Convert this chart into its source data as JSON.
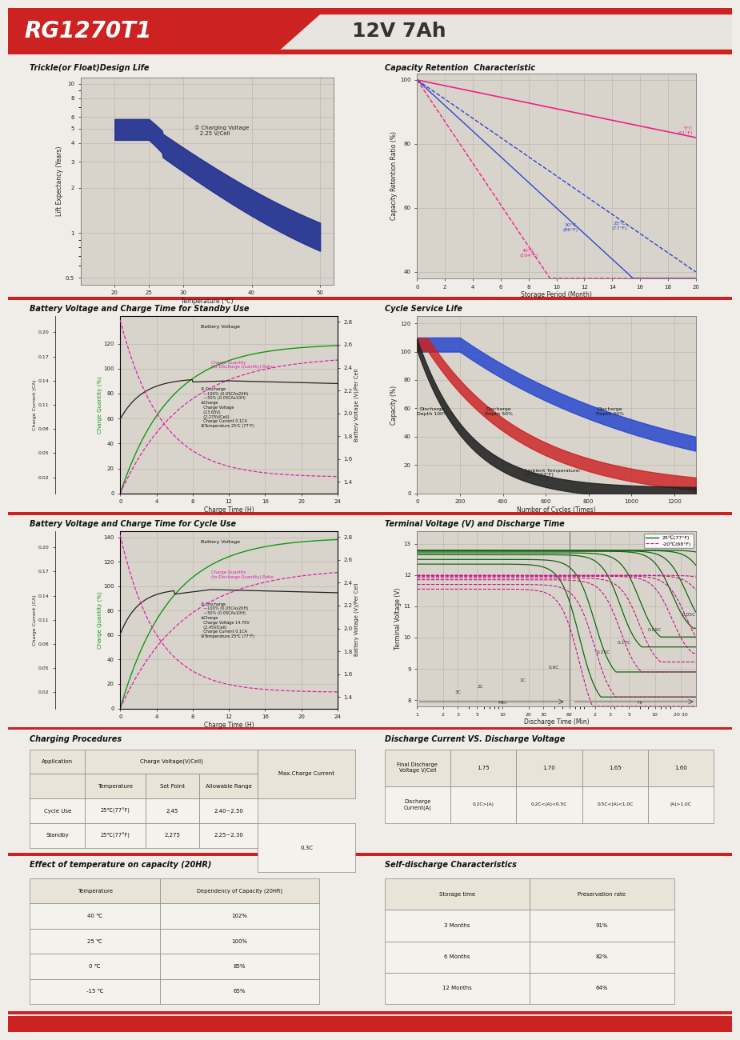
{
  "title_model": "RG1270T1",
  "title_spec": "12V 7Ah",
  "header_red": "#cc2222",
  "page_bg": "#f0ede8",
  "plot_bg": "#d8d4cc",
  "grid_color": "#b8b2a8",
  "charging_procedures": {
    "rows": [
      [
        "Cycle Use",
        "25℃(77°F)",
        "2.45",
        "2.40~2.50"
      ],
      [
        "Standby",
        "25℃(77°F)",
        "2.275",
        "2.25~2.30"
      ]
    ],
    "max_charge": "0.3C"
  },
  "temp_capacity": {
    "rows": [
      [
        "40 ℃",
        "102%"
      ],
      [
        "25 ℃",
        "100%"
      ],
      [
        "0 ℃",
        "85%"
      ],
      [
        "-15 ℃",
        "65%"
      ]
    ]
  },
  "self_discharge": {
    "rows": [
      [
        "3 Months",
        "91%"
      ],
      [
        "6 Months",
        "82%"
      ],
      [
        "12 Months",
        "64%"
      ]
    ]
  }
}
